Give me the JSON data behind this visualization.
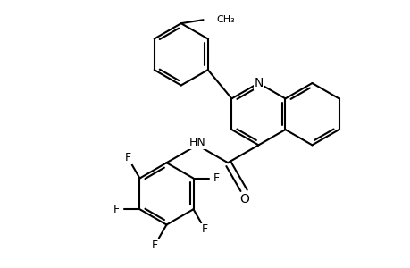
{
  "background_color": "#ffffff",
  "line_color": "#000000",
  "bond_width": 1.5,
  "font_size": 9,
  "figsize": [
    4.6,
    3.0
  ],
  "dpi": 100,
  "xlim": [
    0,
    9.2
  ],
  "ylim": [
    0,
    6.0
  ]
}
